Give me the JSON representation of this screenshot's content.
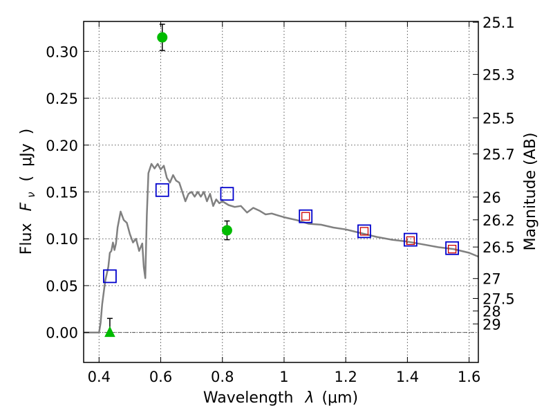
{
  "chart_data": {
    "type": "scatter",
    "xlabel_text": "Wavelength",
    "xlabel_symbol": "λ",
    "xlabel_unit": "(μm)",
    "ylabel_text": "Flux",
    "ylabel_symbol": "F",
    "ylabel_subscript": "ν",
    "ylabel_unit_open": "(",
    "ylabel_unit": "μJy",
    "ylabel_unit_close": ")",
    "y2label": "Magnitude (AB)",
    "xlim": [
      0.35,
      1.63
    ],
    "ylim": [
      -0.032,
      0.332
    ],
    "grid": true,
    "x_ticks": [
      0.4,
      0.6,
      0.8,
      1.0,
      1.2,
      1.4,
      1.6
    ],
    "x_tick_labels": [
      "0.4",
      "0.6",
      "0.8",
      "1",
      "1.2",
      "1.4",
      "1.6"
    ],
    "y_ticks": [
      0.0,
      0.05,
      0.1,
      0.15,
      0.2,
      0.25,
      0.3
    ],
    "y_tick_labels": [
      "0.00",
      "0.05",
      "0.10",
      "0.15",
      "0.20",
      "0.25",
      "0.30"
    ],
    "mag_ticks": [
      {
        "mag": 25.1,
        "label": "25.1"
      },
      {
        "mag": 25.3,
        "label": "25.3"
      },
      {
        "mag": 25.5,
        "label": "25.5"
      },
      {
        "mag": 25.7,
        "label": "25.7"
      },
      {
        "mag": 26.0,
        "label": "26"
      },
      {
        "mag": 26.2,
        "label": "26.2"
      },
      {
        "mag": 26.5,
        "label": "26.5"
      },
      {
        "mag": 27.0,
        "label": "27"
      },
      {
        "mag": 27.5,
        "label": "27.5"
      },
      {
        "mag": 28.0,
        "label": "28"
      },
      {
        "mag": 29.0,
        "label": "29"
      }
    ],
    "model_sed": {
      "color": "#808080",
      "x": [
        0.35,
        0.4,
        0.405,
        0.41,
        0.42,
        0.43,
        0.435,
        0.44,
        0.445,
        0.45,
        0.455,
        0.46,
        0.47,
        0.48,
        0.49,
        0.5,
        0.51,
        0.52,
        0.53,
        0.54,
        0.545,
        0.55,
        0.555,
        0.56,
        0.57,
        0.58,
        0.59,
        0.6,
        0.61,
        0.62,
        0.63,
        0.64,
        0.65,
        0.66,
        0.67,
        0.68,
        0.69,
        0.7,
        0.71,
        0.72,
        0.73,
        0.74,
        0.75,
        0.76,
        0.77,
        0.78,
        0.79,
        0.8,
        0.82,
        0.84,
        0.86,
        0.88,
        0.9,
        0.92,
        0.94,
        0.96,
        0.98,
        1.0,
        1.04,
        1.08,
        1.12,
        1.16,
        1.2,
        1.25,
        1.3,
        1.35,
        1.4,
        1.45,
        1.5,
        1.55,
        1.6,
        1.63
      ],
      "y": [
        0.0,
        0.0,
        0.01,
        0.03,
        0.055,
        0.07,
        0.085,
        0.087,
        0.096,
        0.088,
        0.095,
        0.112,
        0.129,
        0.12,
        0.117,
        0.105,
        0.096,
        0.1,
        0.087,
        0.095,
        0.07,
        0.058,
        0.125,
        0.17,
        0.18,
        0.175,
        0.18,
        0.174,
        0.178,
        0.165,
        0.16,
        0.168,
        0.162,
        0.16,
        0.15,
        0.14,
        0.148,
        0.15,
        0.145,
        0.15,
        0.145,
        0.15,
        0.14,
        0.148,
        0.135,
        0.142,
        0.138,
        0.14,
        0.136,
        0.134,
        0.135,
        0.128,
        0.133,
        0.13,
        0.126,
        0.127,
        0.125,
        0.123,
        0.12,
        0.116,
        0.115,
        0.112,
        0.11,
        0.106,
        0.102,
        0.099,
        0.097,
        0.094,
        0.091,
        0.089,
        0.085,
        0.081
      ]
    },
    "model_photometry": {
      "color": "#0000cc",
      "marker": "square",
      "x": [
        0.435,
        0.605,
        0.815,
        1.07,
        1.26,
        1.41,
        1.545
      ],
      "y": [
        0.06,
        0.152,
        0.148,
        0.124,
        0.108,
        0.099,
        0.09
      ]
    },
    "small_squares": {
      "color": "#cc0000",
      "marker": "square",
      "x": [
        1.07,
        1.26,
        1.41,
        1.545
      ],
      "y": [
        0.124,
        0.108,
        0.098,
        0.089
      ]
    },
    "observed_points": {
      "color": "#00bb00",
      "marker": "circle",
      "x": [
        0.605,
        0.815
      ],
      "y": [
        0.315,
        0.109
      ],
      "yerr": [
        0.014,
        0.01
      ]
    },
    "upper_limit": {
      "color": "#00bb00",
      "marker": "triangle",
      "x": 0.435,
      "y": 0.0,
      "err_high": 0.015
    }
  }
}
